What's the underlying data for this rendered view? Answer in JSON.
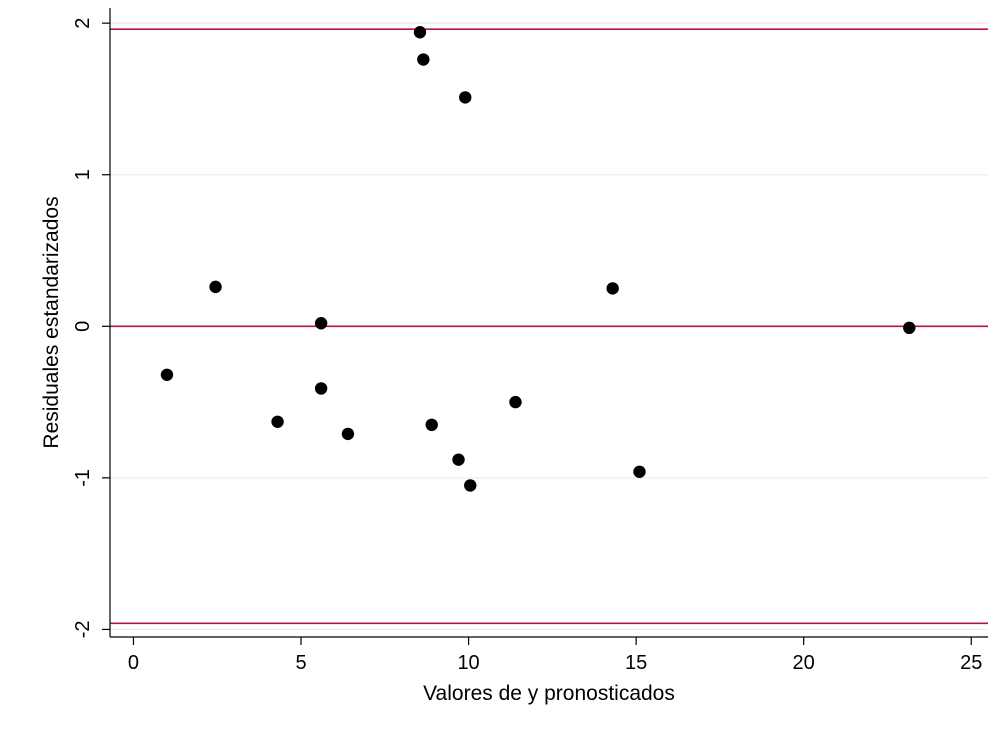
{
  "chart_data": {
    "type": "scatter",
    "title": "",
    "xlabel": "Valores de y pronosticados",
    "ylabel": "Residuales estandarizados",
    "xlim": [
      -0.7,
      25.5
    ],
    "ylim": [
      -2.05,
      2.1
    ],
    "x_ticks": [
      0,
      5,
      10,
      15,
      20,
      25
    ],
    "x_tick_labels": [
      "0",
      "5",
      "10",
      "15",
      "20",
      "25"
    ],
    "y_ticks": [
      -2,
      -1,
      0,
      1,
      2
    ],
    "y_tick_labels": [
      "-2",
      "-1",
      "0",
      "1",
      "2"
    ],
    "grid": true,
    "reference_lines": [
      1.96,
      0,
      -1.96
    ],
    "colors": {
      "points": "#000000",
      "reference_line": "#b5163c",
      "grid": "#e9eef0"
    },
    "points": [
      {
        "x": 1.0,
        "y": -0.32
      },
      {
        "x": 2.45,
        "y": 0.26
      },
      {
        "x": 4.3,
        "y": -0.63
      },
      {
        "x": 5.6,
        "y": -0.41
      },
      {
        "x": 5.6,
        "y": 0.02
      },
      {
        "x": 6.4,
        "y": -0.71
      },
      {
        "x": 8.55,
        "y": 1.94
      },
      {
        "x": 8.65,
        "y": 1.76
      },
      {
        "x": 8.9,
        "y": -0.65
      },
      {
        "x": 9.7,
        "y": -0.88
      },
      {
        "x": 9.9,
        "y": 1.51
      },
      {
        "x": 10.05,
        "y": -1.05
      },
      {
        "x": 11.4,
        "y": -0.5
      },
      {
        "x": 14.3,
        "y": 0.25
      },
      {
        "x": 15.1,
        "y": -0.96
      },
      {
        "x": 23.15,
        "y": -0.01
      }
    ]
  }
}
